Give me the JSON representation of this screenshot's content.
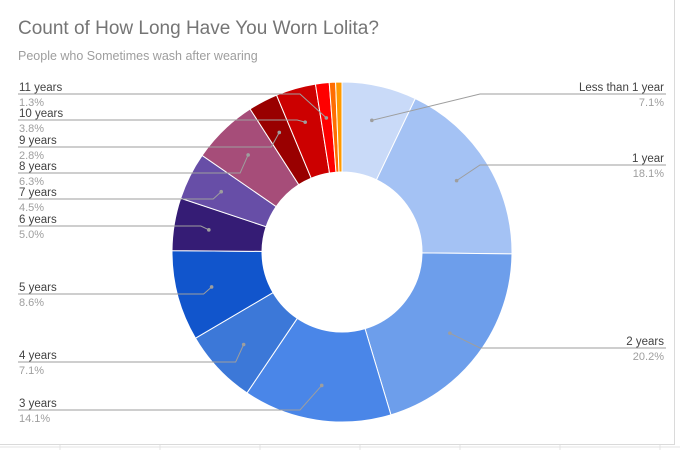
{
  "chart_data": {
    "type": "pie",
    "donut": true,
    "title": "Count of How Long Have You Worn Lolita?",
    "subtitle": "People who Sometimes wash after wearing",
    "slices": [
      {
        "label": "Less than 1 year",
        "pct_label": "7.1%",
        "value": 7.1,
        "color": "#c9daf8"
      },
      {
        "label": "1 year",
        "pct_label": "18.1%",
        "value": 18.1,
        "color": "#a4c2f4"
      },
      {
        "label": "2 years",
        "pct_label": "20.2%",
        "value": 20.2,
        "color": "#6d9eeb"
      },
      {
        "label": "3 years",
        "pct_label": "14.1%",
        "value": 14.1,
        "color": "#4a86e8"
      },
      {
        "label": "4 years",
        "pct_label": "7.1%",
        "value": 7.1,
        "color": "#3c78d8"
      },
      {
        "label": "5 years",
        "pct_label": "8.6%",
        "value": 8.6,
        "color": "#1155cc"
      },
      {
        "label": "6 years",
        "pct_label": "5.0%",
        "value": 5.0,
        "color": "#351c75"
      },
      {
        "label": "7 years",
        "pct_label": "4.5%",
        "value": 4.5,
        "color": "#674ea7"
      },
      {
        "label": "8 years",
        "pct_label": "6.3%",
        "value": 6.3,
        "color": "#a64d79"
      },
      {
        "label": "9 years",
        "pct_label": "2.8%",
        "value": 2.8,
        "color": "#990000"
      },
      {
        "label": "10 years",
        "pct_label": "3.8%",
        "value": 3.8,
        "color": "#cc0000"
      },
      {
        "label": "11 years",
        "pct_label": "1.3%",
        "value": 1.3,
        "color": "#ff0000"
      },
      {
        "label": "",
        "pct_label": "",
        "value": 0.6,
        "color": "#ff6d01"
      },
      {
        "label": "",
        "pct_label": "",
        "value": 0.6,
        "color": "#ff9900"
      }
    ]
  }
}
